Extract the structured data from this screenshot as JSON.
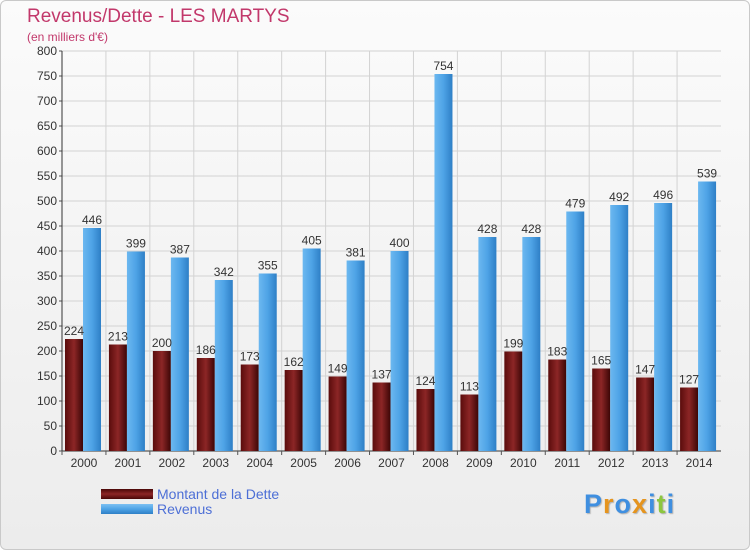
{
  "header": {
    "title": "Revenus/Dette - LES MARTYS",
    "subtitle": "(en milliers d'€)"
  },
  "chart_data": {
    "type": "bar",
    "title": "Revenus/Dette - LES MARTYS",
    "subtitle": "(en milliers d'€)",
    "categories": [
      "2000",
      "2001",
      "2002",
      "2003",
      "2004",
      "2005",
      "2006",
      "2007",
      "2008",
      "2009",
      "2010",
      "2011",
      "2012",
      "2013",
      "2014"
    ],
    "series": [
      {
        "name": "Montant de la Dette",
        "color": "#7a1a1a",
        "values": [
          224,
          213,
          200,
          186,
          173,
          162,
          149,
          137,
          124,
          113,
          199,
          183,
          165,
          147,
          127
        ]
      },
      {
        "name": "Revenus",
        "color": "#4ea3e6",
        "values": [
          446,
          399,
          387,
          342,
          355,
          405,
          381,
          400,
          754,
          428,
          428,
          479,
          492,
          496,
          539
        ]
      }
    ],
    "ylim": [
      0,
      800
    ],
    "ytick_step": 50,
    "grid": true,
    "legend": "bottom-left"
  },
  "logo": {
    "letters": [
      "P",
      "r",
      "o",
      "x",
      "i",
      "t",
      "i"
    ],
    "colors": [
      "#3f8fe0",
      "#e5941e",
      "#3f8fe0",
      "#e5941e",
      "#3f8fe0",
      "#8cc63f",
      "#3f8fe0"
    ]
  }
}
